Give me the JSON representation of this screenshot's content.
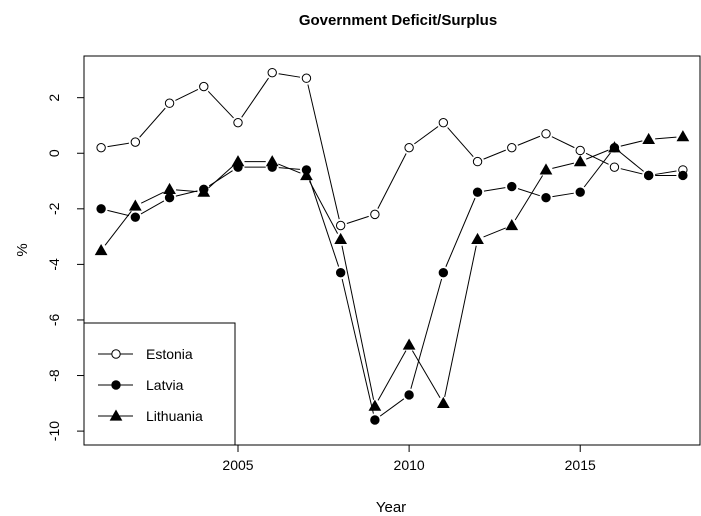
{
  "chart_data": {
    "type": "line",
    "title": "Government Deficit/Surplus",
    "xlabel": "Year",
    "ylabel": "%",
    "x": [
      2001,
      2002,
      2003,
      2004,
      2005,
      2006,
      2007,
      2008,
      2009,
      2010,
      2011,
      2012,
      2013,
      2014,
      2015,
      2016,
      2017,
      2018
    ],
    "xlim": [
      2000.5,
      2018.5
    ],
    "ylim": [
      -10.5,
      3.5
    ],
    "x_ticks": [
      2005,
      2010,
      2015
    ],
    "y_ticks": [
      2,
      0,
      -2,
      -4,
      -6,
      -8,
      -10
    ],
    "grid": false,
    "legend_position": "bottom-left",
    "series": [
      {
        "name": "Estonia",
        "marker": "open-circle",
        "values": [
          0.2,
          0.4,
          1.8,
          2.4,
          1.1,
          2.9,
          2.7,
          -2.6,
          -2.2,
          0.2,
          1.1,
          -0.3,
          0.2,
          0.7,
          0.1,
          -0.5,
          -0.8,
          -0.6
        ]
      },
      {
        "name": "Latvia",
        "marker": "filled-circle",
        "values": [
          -2.0,
          -2.3,
          -1.6,
          -1.3,
          -0.5,
          -0.5,
          -0.6,
          -4.3,
          -9.6,
          -8.7,
          -4.3,
          -1.4,
          -1.2,
          -1.6,
          -1.4,
          0.2,
          -0.8,
          -0.8
        ]
      },
      {
        "name": "Lithuania",
        "marker": "filled-triangle",
        "values": [
          -3.5,
          -1.9,
          -1.3,
          -1.4,
          -0.3,
          -0.3,
          -0.8,
          -3.1,
          -9.1,
          -6.9,
          -9.0,
          -3.1,
          -2.6,
          -0.6,
          -0.3,
          0.2,
          0.5,
          0.6
        ]
      }
    ]
  }
}
